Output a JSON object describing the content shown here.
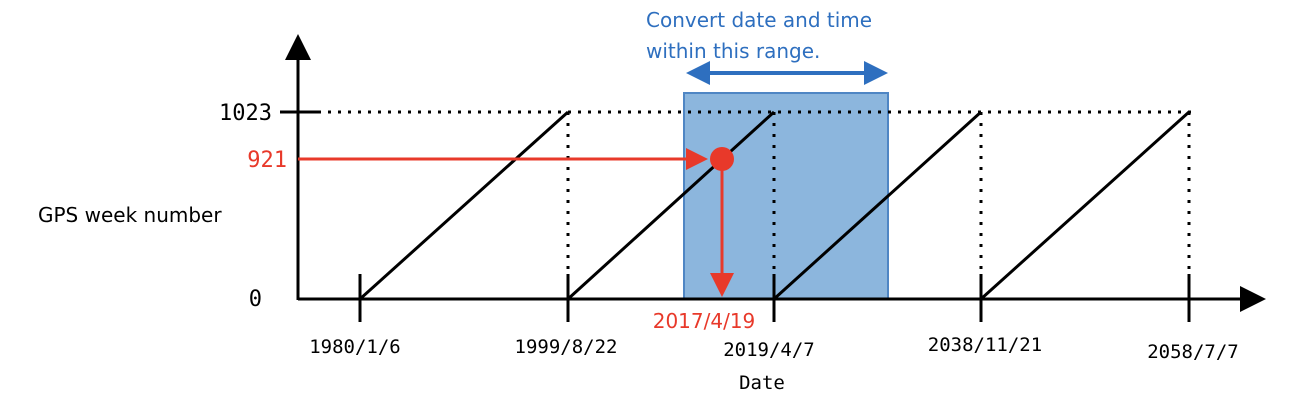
{
  "y_axis_label": "GPS week number",
  "x_axis_label": "Date",
  "y_max_label": "1023",
  "y_zero_label": "0",
  "highlight_week": "921",
  "highlight_date": "2017/4/19",
  "range_note_line1": "Convert date and time",
  "range_note_line2": "within this range.",
  "rollover_dates": [
    "1980/1/6",
    "1999/8/22",
    "2019/4/7",
    "2038/11/21",
    "2058/7/7"
  ],
  "colors": {
    "highlight": "#e8392a",
    "range_fill": "#8cb6dd",
    "range_border": "#4f86c4",
    "range_arrow": "#2e6fbf",
    "axis": "#000000"
  }
}
